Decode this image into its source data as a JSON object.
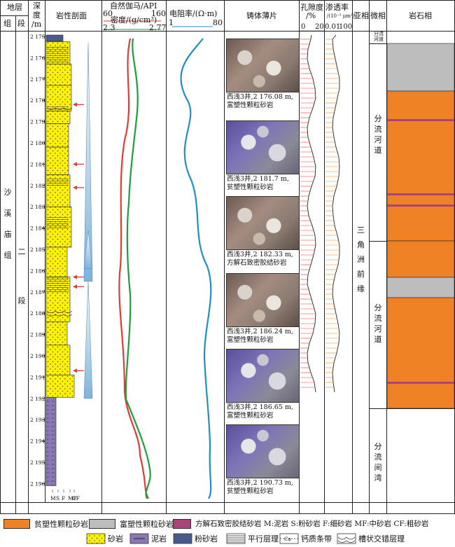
{
  "header": {
    "strata": "地层",
    "formation": "组",
    "member": "段",
    "depth_line1": "深",
    "depth_line2": "度",
    "depth_line3": "/m",
    "lithology_profile": "岩性剖面",
    "gamma_label": "自然伽马/API",
    "gamma_min": "60",
    "gamma_max": "160",
    "density_label": "密度/(g/cm³)",
    "density_min": "2.3",
    "density_max": "2.77",
    "resistivity_label": "电阻率/(Ω·m)",
    "res_min": "1",
    "res_max": "80",
    "thin_section": "铸体薄片",
    "porosity_label1": "孔隙度",
    "porosity_label2": "/%",
    "por_min": "0",
    "por_max": "20",
    "perm_label1": "渗透率",
    "perm_label2": "/(10⁻³ μm²)",
    "perm_min": "0.01",
    "perm_max": "100",
    "subfacies": "亚相",
    "microfacies": "微相",
    "lithofacies": "岩石相"
  },
  "strata": {
    "formation_name": "沙\n溪\n庙\n组",
    "member_name": "二\n段",
    "subfacies_name": "三\n角\n洲\n前\n缘"
  },
  "microfacies": [
    {
      "name": "分流\n河道",
      "small": true
    },
    {
      "name": "分\n流\n河\n道"
    },
    {
      "name": "分\n流\n河\n道"
    },
    {
      "name": "分\n流\n间\n湾"
    }
  ],
  "depth_ticks": [
    "2 175",
    "2 176",
    "2 177",
    "2 178",
    "2 179",
    "2 180",
    "2 181",
    "2 182",
    "2 183",
    "2 184",
    "2 185",
    "2 186",
    "2 187",
    "2 188",
    "2 189",
    "2 190",
    "2 191",
    "2 192",
    "2 193",
    "2 194",
    "2 195",
    "2 196"
  ],
  "grain_axis": [
    "M",
    "S",
    "F",
    "MF",
    "CF"
  ],
  "thin_sections": [
    {
      "cap1": "西浅3井,2 176.08 m,",
      "cap2": "富塑性颗粒砂岩",
      "blue": false
    },
    {
      "cap1": "西浅3井,2 181.7 m,",
      "cap2": "贫塑性颗粒砂岩",
      "blue": true
    },
    {
      "cap1": "西浅3井,2 182.33 m,",
      "cap2": "方解石致密胶结砂岩",
      "blue": false
    },
    {
      "cap1": "西浅3井,2 186.24 m,",
      "cap2": "富塑性颗粒砂岩",
      "blue": false
    },
    {
      "cap1": "西浅3井,2 186.65 m,",
      "cap2": "富塑性颗粒砂岩",
      "blue": true
    },
    {
      "cap1": "西浅3井,2 190.73 m,",
      "cap2": "贫塑性颗粒砂岩",
      "blue": true
    }
  ],
  "legend": {
    "row1": [
      {
        "label": "贫塑性颗粒砂岩 ",
        "color": "#f08226"
      },
      {
        "label": "富塑性颗粒砂岩",
        "color": "#bdbdbd"
      },
      {
        "label": "方解石致密胶结砂岩 M:泥岩 S:粉砂岩 F:细砂岩 MF:中砂岩 CF:粗砂岩",
        "color": "#a8447a"
      }
    ],
    "row2": [
      {
        "label": "砂岩",
        "icon": "sandstone-icon"
      },
      {
        "label": "泥岩",
        "icon": "mudstone-icon"
      },
      {
        "label": "粉砂岩",
        "icon": "siltstone-icon"
      },
      {
        "label": "平行层理",
        "icon": "parallel-bedding-icon"
      },
      {
        "label": "钙质条带",
        "icon": "calcareous-band-icon",
        "tag": "Ca"
      },
      {
        "label": "槽状交错层理",
        "icon": "trough-cross-bedding-icon"
      }
    ]
  },
  "colors": {
    "gamma": "#e53935",
    "density": "#1e9e3a",
    "resistivity": "#1f8fc4",
    "porosity": "#e53935",
    "permeability": "#f08226",
    "sandstone": "#fff200",
    "mudstone": "#8a78b5",
    "siltstone": "#4b5a8c",
    "arrow": "#e53935"
  }
}
